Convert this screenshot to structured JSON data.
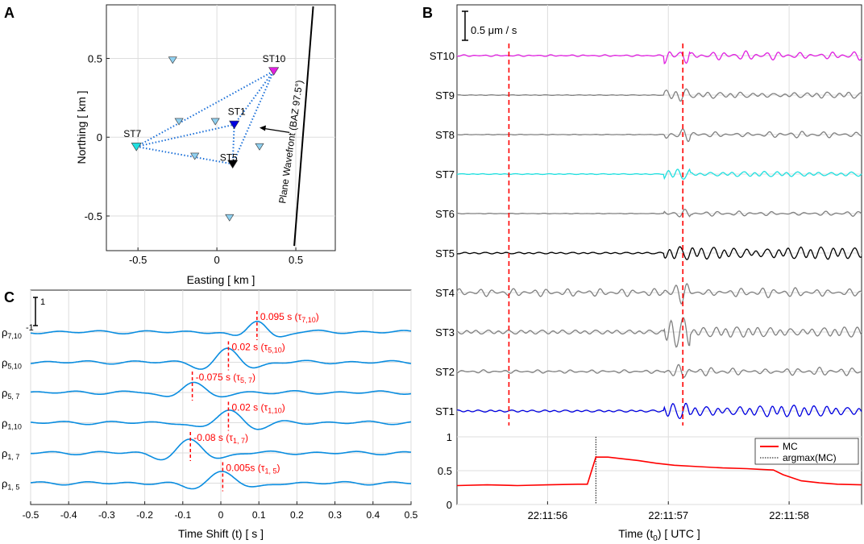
{
  "panel_labels": {
    "a": "A",
    "b": "B",
    "c": "C"
  },
  "colors": {
    "st10": "#e020e0",
    "st7": "#20e0e0",
    "st5": "#000000",
    "st1": "#0000e0",
    "gray": "#808080",
    "light_station": "#8fd0f0",
    "trace_c": "#0a8de0",
    "red": "#ff0000",
    "mc": "#ff0000"
  },
  "chart_data": [
    {
      "id": "A",
      "type": "scatter",
      "title": "",
      "xlabel": "Easting [ km ]",
      "ylabel": "Northing [ km ]",
      "xlim": [
        -0.7,
        0.75
      ],
      "ylim": [
        -0.72,
        0.84
      ],
      "xticks": [
        -0.5,
        0,
        0.5
      ],
      "xtick_labels": [
        "-0.5",
        "0",
        "0.5"
      ],
      "yticks": [
        -0.5,
        0,
        0.5
      ],
      "ytick_labels": [
        "-0.5",
        "0",
        "0.5"
      ],
      "grid": true,
      "other_stations": [
        {
          "x": -0.28,
          "y": 0.49
        },
        {
          "x": -0.24,
          "y": 0.1
        },
        {
          "x": -0.01,
          "y": 0.1
        },
        {
          "x": -0.14,
          "y": -0.12
        },
        {
          "x": 0.27,
          "y": -0.06
        },
        {
          "x": 0.08,
          "y": -0.51
        }
      ],
      "labeled_stations": [
        {
          "name": "ST10",
          "x": 0.36,
          "y": 0.42,
          "color": "#e020e0"
        },
        {
          "name": "ST1",
          "x": 0.11,
          "y": 0.08,
          "color": "#0000e0"
        },
        {
          "name": "ST7",
          "x": -0.51,
          "y": -0.06,
          "color": "#20e0e0"
        },
        {
          "name": "ST5",
          "x": 0.1,
          "y": -0.17,
          "color": "#000000"
        }
      ],
      "pairs": [
        [
          "ST7",
          "ST10"
        ],
        [
          "ST7",
          "ST1"
        ],
        [
          "ST7",
          "ST5"
        ],
        [
          "ST1",
          "ST10"
        ],
        [
          "ST5",
          "ST10"
        ],
        [
          "ST1",
          "ST5"
        ]
      ],
      "wavefront": {
        "label": "Plane Wavefront (BAZ 97.5°)",
        "x1": 0.49,
        "y1": -0.69,
        "x2": 0.61,
        "y2": 0.83
      },
      "arrow": {
        "x1": 0.46,
        "y1": 0.03,
        "x2": 0.27,
        "y2": 0.06
      }
    },
    {
      "id": "B",
      "type": "line",
      "xlabel": "Time (t0) [ UTC ]",
      "xlabel_main": "Time (t",
      "xlabel_sub": "0",
      "xlabel_end": ") [ UTC ]",
      "xlim": [
        0,
        3.35
      ],
      "xticks": [
        0.75,
        1.75,
        2.75
      ],
      "xtick_labels": [
        "22:11:56",
        "22:11:57",
        "22:11:58"
      ],
      "scale_bar_label": "0.5 μm / s",
      "red_markers": [
        0.43,
        1.87
      ],
      "event_time": 1.75,
      "traces": [
        {
          "name": "ST10",
          "color": "#e020e0",
          "noise": 0.1,
          "event": 1.0,
          "coda": 0.55,
          "seed": 11
        },
        {
          "name": "ST9",
          "color": "#808080",
          "noise": 0.04,
          "event": 0.9,
          "coda": 0.45,
          "seed": 21
        },
        {
          "name": "ST8",
          "color": "#808080",
          "noise": 0.04,
          "event": 0.8,
          "coda": 0.4,
          "seed": 31
        },
        {
          "name": "ST7",
          "color": "#20e0e0",
          "noise": 0.06,
          "event": 0.8,
          "coda": 0.4,
          "seed": 41
        },
        {
          "name": "ST6",
          "color": "#808080",
          "noise": 0.04,
          "event": 0.5,
          "coda": 0.3,
          "seed": 51
        },
        {
          "name": "ST5",
          "color": "#000000",
          "noise": 0.12,
          "event": 1.0,
          "coda": 0.95,
          "seed": 61
        },
        {
          "name": "ST4",
          "color": "#808080",
          "noise": 0.45,
          "event": 1.3,
          "coda": 0.6,
          "seed": 71
        },
        {
          "name": "ST3",
          "color": "#808080",
          "noise": 0.3,
          "event": 2.3,
          "coda": 0.8,
          "seed": 81
        },
        {
          "name": "ST2",
          "color": "#808080",
          "noise": 0.2,
          "event": 0.8,
          "coda": 0.5,
          "seed": 91
        },
        {
          "name": "ST1",
          "color": "#0000e0",
          "noise": 0.15,
          "event": 1.2,
          "coda": 0.9,
          "seed": 101
        }
      ]
    },
    {
      "id": "B-MC",
      "type": "line",
      "xlim": [
        0,
        3.35
      ],
      "ylim": [
        0,
        1
      ],
      "yticks": [
        0,
        0.5,
        1
      ],
      "ytick_labels": [
        "0",
        "0.5",
        "1"
      ],
      "argmax_x": 1.15,
      "legend": [
        "MC",
        "argmax(MC)"
      ],
      "legend_position": "top-right",
      "x": [
        0,
        0.25,
        0.5,
        0.75,
        1.0,
        1.08,
        1.15,
        1.25,
        1.35,
        1.5,
        1.65,
        1.8,
        2.0,
        2.2,
        2.4,
        2.5,
        2.62,
        2.7,
        2.85,
        3.0,
        3.15,
        3.35
      ],
      "y": [
        0.28,
        0.29,
        0.28,
        0.29,
        0.3,
        0.3,
        0.7,
        0.7,
        0.68,
        0.65,
        0.61,
        0.58,
        0.56,
        0.54,
        0.53,
        0.52,
        0.51,
        0.44,
        0.35,
        0.32,
        0.3,
        0.29
      ]
    },
    {
      "id": "C",
      "type": "line",
      "xlabel": "Time Shift (t) [ s ]",
      "xlim": [
        -0.5,
        0.5
      ],
      "xticks": [
        -0.5,
        -0.4,
        -0.3,
        -0.2,
        -0.1,
        0,
        0.1,
        0.2,
        0.3,
        0.4,
        0.5
      ],
      "xtick_labels": [
        "-0.5",
        "-0.4",
        "-0.3",
        "-0.2",
        "-0.1",
        "0",
        "0.1",
        "0.2",
        "0.3",
        "0.4",
        "0.5"
      ],
      "scale_top": "1",
      "scale_bottom": "-1",
      "rows": [
        {
          "rho": "ρ",
          "sub": "7,10",
          "peak": 0.095,
          "value": "0.095 s (τ",
          "tsub": "7,10",
          "tclose": ")",
          "amp": 0.9,
          "w": 0.075
        },
        {
          "rho": "ρ",
          "sub": "5,10",
          "peak": 0.02,
          "value": "0.02 s (τ",
          "tsub": "5,10",
          "tclose": ")",
          "amp": 1.0,
          "w": 0.09
        },
        {
          "rho": "ρ",
          "sub": "5, 7",
          "peak": -0.075,
          "value": "-0.075 s (τ",
          "tsub": "5, 7",
          "tclose": ")",
          "amp": 0.85,
          "w": 0.09
        },
        {
          "rho": "ρ",
          "sub": "1,10",
          "peak": 0.02,
          "value": "0.02 s (τ",
          "tsub": "1,10",
          "tclose": ")",
          "amp": 1.0,
          "w": 0.1
        },
        {
          "rho": "ρ",
          "sub": "1, 7",
          "peak": -0.08,
          "value": "-0.08 s (τ",
          "tsub": "1, 7",
          "tclose": ")",
          "amp": 0.95,
          "w": 0.1
        },
        {
          "rho": "ρ",
          "sub": "1, 5",
          "peak": 0.005,
          "value": "0.005s (τ",
          "tsub": "1, 5",
          "tclose": ")",
          "amp": 0.9,
          "w": 0.11
        }
      ]
    }
  ]
}
